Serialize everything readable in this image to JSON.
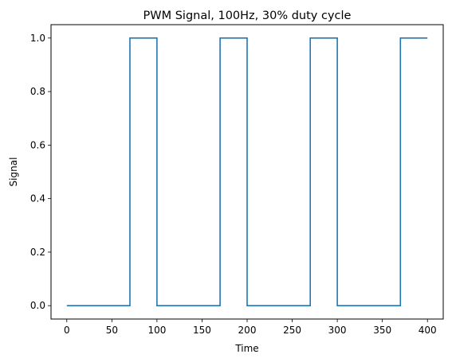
{
  "chart_data": {
    "type": "line",
    "title": "PWM Signal, 100Hz, 30% duty cycle",
    "xlabel": "Time",
    "ylabel": "Signal",
    "xlim": [
      -17.5,
      417.5
    ],
    "ylim": [
      -0.05,
      1.05
    ],
    "xticks": [
      0,
      50,
      100,
      150,
      200,
      250,
      300,
      350,
      400
    ],
    "yticks": [
      0.0,
      0.2,
      0.4,
      0.6,
      0.8,
      1.0
    ],
    "ytick_labels": [
      "0.0",
      "0.2",
      "0.4",
      "0.6",
      "0.8",
      "1.0"
    ],
    "grid": false,
    "series": [
      {
        "color": "#1f77b4",
        "x": [
          0,
          70,
          70,
          100,
          100,
          170,
          170,
          200,
          200,
          270,
          270,
          300,
          300,
          370,
          370,
          400
        ],
        "y": [
          0,
          0,
          1,
          1,
          0,
          0,
          1,
          1,
          0,
          0,
          1,
          1,
          0,
          0,
          1,
          1
        ]
      }
    ]
  }
}
